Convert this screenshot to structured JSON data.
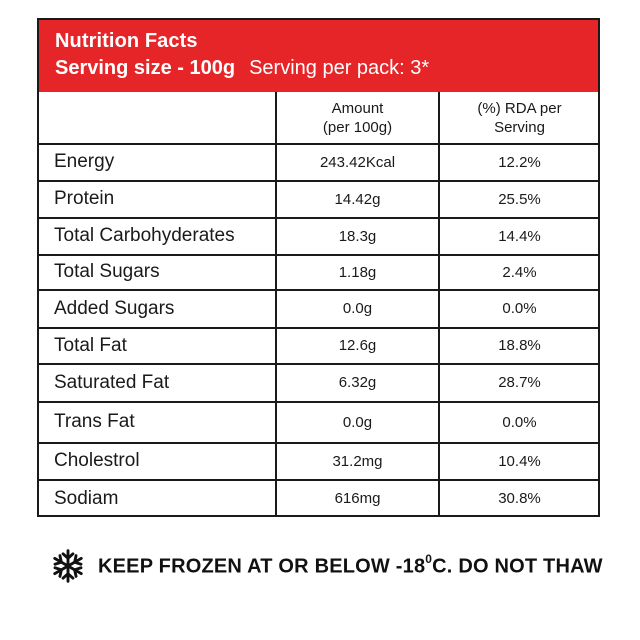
{
  "header": {
    "title": "Nutrition Facts",
    "serving_size": "Serving size - 100g",
    "serving_per_pack": "Serving per pack: 3*"
  },
  "table": {
    "columns": {
      "amount_line1": "Amount",
      "amount_line2": "(per 100g)",
      "rda_line1": "(%) RDA per",
      "rda_line2": "Serving"
    },
    "rows": [
      {
        "name": "Energy",
        "amount": "243.42Kcal",
        "rda": "12.2%"
      },
      {
        "name": "Protein",
        "amount": "14.42g",
        "rda": "25.5%"
      },
      {
        "name": "Total Carbohyderates",
        "amount": "18.3g",
        "rda": "14.4%"
      },
      {
        "name": "Total Sugars",
        "amount": "1.18g",
        "rda": "2.4%"
      },
      {
        "name": "Added Sugars",
        "amount": "0.0g",
        "rda": "0.0%"
      },
      {
        "name": "Total Fat",
        "amount": "12.6g",
        "rda": "18.8%"
      },
      {
        "name": "Saturated Fat",
        "amount": "6.32g",
        "rda": "28.7%"
      },
      {
        "name": "Trans Fat",
        "amount": "0.0g",
        "rda": "0.0%"
      },
      {
        "name": "Cholestrol",
        "amount": "31.2mg",
        "rda": "10.4%"
      },
      {
        "name": "Sodiam",
        "amount": "616mg",
        "rda": "30.8%"
      }
    ]
  },
  "footer": {
    "icon": "snowflake-icon",
    "text_before": "KEEP FROZEN AT OR BELOW -18",
    "degree": "0",
    "text_after": "C. DO NOT THAW"
  },
  "colors": {
    "header_bg": "#e52528",
    "header_text": "#ffffff",
    "border": "#1a1a1a"
  }
}
